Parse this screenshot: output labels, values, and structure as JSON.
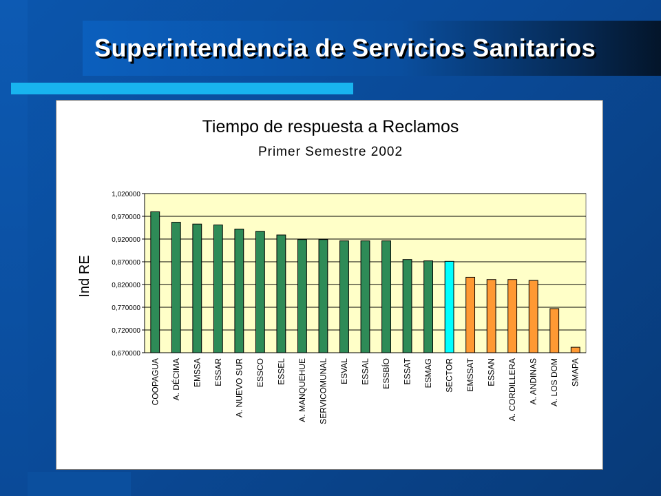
{
  "header": {
    "title": "Superintendencia de Servicios Sanitarios"
  },
  "colors": {
    "background": "#0a4a98",
    "accent_bar": "#18b4ef",
    "plot_area": "#ffffc8",
    "bar_green": "#2e8b57",
    "bar_cyan": "#00ffff",
    "bar_orange": "#ff9933"
  },
  "chart_data": {
    "type": "bar",
    "title": "Tiempo de respuesta a Reclamos",
    "subtitle": "Primer Semestre 2002",
    "xlabel": "",
    "ylabel": "Ind RE",
    "ylim": [
      0.67,
      1.02
    ],
    "yticks": [
      "1,020000",
      "0,970000",
      "0,920000",
      "0,870000",
      "0,820000",
      "0,770000",
      "0,720000",
      "0,670000"
    ],
    "ytick_values": [
      1.02,
      0.97,
      0.92,
      0.87,
      0.82,
      0.77,
      0.72,
      0.67
    ],
    "grid": true,
    "legend": "none",
    "categories": [
      "COOPAGUA",
      "A. DÉCIMA",
      "EMSSA",
      "ESSAR",
      "A. NUEVO SUR",
      "ESSCO",
      "ESSEL",
      "A. MANQUEHUE",
      "SERVICOMUNAL",
      "ESVAL",
      "ESSAL",
      "ESSBÍO",
      "ESSAT",
      "ESMAG",
      "SECTOR",
      "EMSSAT",
      "ESSAN",
      "A. CORDILLERA",
      "A. ANDINAS",
      "A. LOS DOM",
      "SMAPA"
    ],
    "values": [
      0.98,
      0.957,
      0.953,
      0.951,
      0.942,
      0.937,
      0.929,
      0.919,
      0.919,
      0.916,
      0.916,
      0.916,
      0.875,
      0.872,
      0.871,
      0.836,
      0.831,
      0.831,
      0.829,
      0.767,
      0.682
    ],
    "colors": [
      "green",
      "green",
      "green",
      "green",
      "green",
      "green",
      "green",
      "green",
      "green",
      "green",
      "green",
      "green",
      "green",
      "green",
      "cyan",
      "orange",
      "orange",
      "orange",
      "orange",
      "orange",
      "orange"
    ]
  }
}
